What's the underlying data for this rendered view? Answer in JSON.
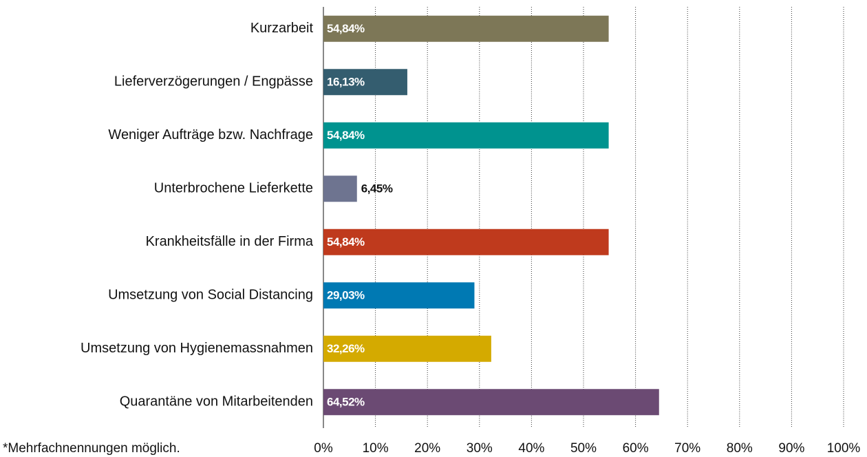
{
  "chart_data": {
    "type": "bar",
    "orientation": "horizontal",
    "categories": [
      "Kurzarbeit",
      "Lieferverzögerungen / Engpässe",
      "Weniger Aufträge bzw. Nachfrage",
      "Unterbrochene Lieferkette",
      "Krankheitsfälle in der Firma",
      "Umsetzung von Social Distancing",
      "Umsetzung von Hygienemassnahmen",
      "Quarantäne von Mitarbeitenden"
    ],
    "values": [
      54.84,
      16.13,
      54.84,
      6.45,
      54.84,
      29.03,
      32.26,
      64.52
    ],
    "value_labels": [
      "54,84%",
      "16,13%",
      "54,84%",
      "6,45%",
      "54,84%",
      "29,03%",
      "32,26%",
      "64,52%"
    ],
    "colors": [
      "#7d7757",
      "#345d6f",
      "#00938f",
      "#6e7490",
      "#bf3a1d",
      "#0079b3",
      "#d4aa00",
      "#6b4a73"
    ],
    "xlim": [
      0,
      100
    ],
    "xticks": [
      {
        "value": 0,
        "label": "0%"
      },
      {
        "value": 10,
        "label": "10%"
      },
      {
        "value": 20,
        "label": "20%"
      },
      {
        "value": 30,
        "label": "30%"
      },
      {
        "value": 40,
        "label": "40%"
      },
      {
        "value": 50,
        "label": "50%"
      },
      {
        "value": 60,
        "label": "60%"
      },
      {
        "value": 70,
        "label": "70%"
      },
      {
        "value": 80,
        "label": "80%"
      },
      {
        "value": 90,
        "label": "90%"
      },
      {
        "value": 100,
        "label": "100%"
      }
    ],
    "grid": true,
    "footnote": "*Mehrfachnennungen möglich."
  }
}
